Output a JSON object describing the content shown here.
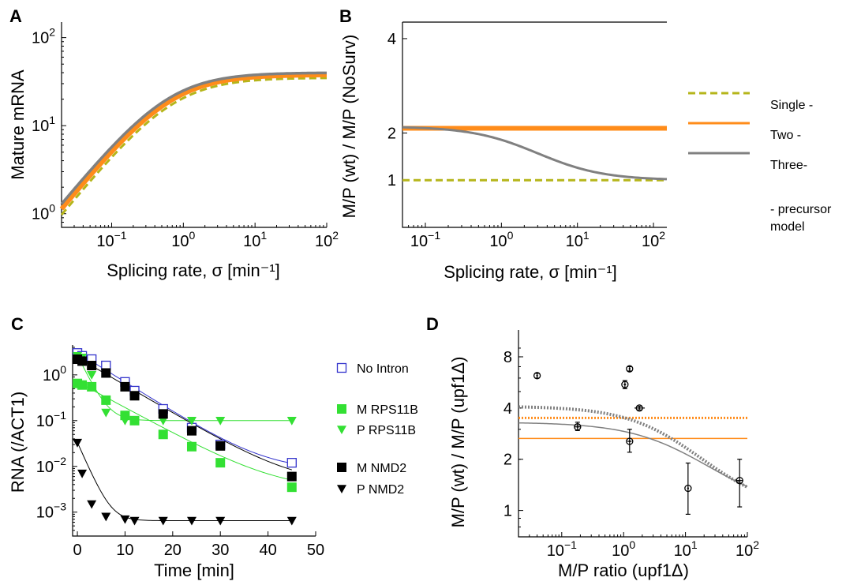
{
  "colors": {
    "single": "#b5b51a",
    "two": "#ff8c1a",
    "three": "#808080",
    "noIntron": "#3333cc",
    "rps": "#33e033",
    "nmd": "#000000"
  },
  "chart_data": [
    {
      "id": "A",
      "panel_label": "A",
      "type": "line",
      "xlabel": "Splicing rate, σ [min⁻¹]",
      "ylabel": "Mature mRNA",
      "xscale": "log",
      "yscale": "log",
      "xlim": [
        0.02,
        100
      ],
      "ylim": [
        0.7,
        150
      ],
      "xticks": [
        0.1,
        1,
        10,
        100
      ],
      "xtick_labels": [
        {
          "base": "10",
          "exp": "−1"
        },
        {
          "base": "10",
          "exp": "0"
        },
        {
          "base": "10",
          "exp": "1"
        },
        {
          "base": "10",
          "exp": "2"
        }
      ],
      "yticks": [
        1,
        10,
        100
      ],
      "ytick_labels": [
        {
          "base": "10",
          "exp": "0"
        },
        {
          "base": "10",
          "exp": "1"
        },
        {
          "base": "10",
          "exp": "2"
        }
      ],
      "series": [
        {
          "key": "single",
          "style": "dashed",
          "width": 3,
          "K": 35,
          "x0": 0.7,
          "n": 1
        },
        {
          "key": "two",
          "style": "solid",
          "width": 6,
          "K": 38,
          "x0": 0.65,
          "n": 1
        },
        {
          "key": "three",
          "style": "solid",
          "width": 3.5,
          "K": 40,
          "x0": 0.6,
          "n": 1
        }
      ]
    },
    {
      "id": "B",
      "panel_label": "B",
      "type": "line",
      "xlabel": "Splicing rate, σ [min⁻¹]",
      "ylabel": "M/P (wt) / M/P (NoSurv)",
      "xscale": "log",
      "yscale": "linear",
      "xlim": [
        0.05,
        150
      ],
      "ylim": [
        0,
        4.35
      ],
      "xticks": [
        0.1,
        1,
        10,
        100
      ],
      "xtick_labels": [
        {
          "base": "10",
          "exp": "−1"
        },
        {
          "base": "10",
          "exp": "0"
        },
        {
          "base": "10",
          "exp": "1"
        },
        {
          "base": "10",
          "exp": "2"
        }
      ],
      "yticks": [
        1,
        2,
        4
      ],
      "ytick_labels": [
        "1",
        "2",
        "4"
      ],
      "series": [
        {
          "key": "single",
          "style": "dashed",
          "width": 3,
          "const": 1.0
        },
        {
          "key": "two",
          "style": "solid",
          "width": 6,
          "const": 2.1
        },
        {
          "key": "three",
          "style": "solid",
          "width": 3,
          "top": 2.14,
          "bottom": 1.0,
          "mid": 3.0,
          "n": 1.0
        }
      ]
    },
    {
      "id": "C",
      "panel_label": "C",
      "type": "scatter",
      "xlabel": "Time [min]",
      "ylabel": "RNA (/ACT1)",
      "xscale": "linear",
      "yscale": "log",
      "xlim": [
        -1,
        50
      ],
      "ylim": [
        0.0003,
        4.5
      ],
      "xticks": [
        0,
        10,
        20,
        30,
        40,
        50
      ],
      "xtick_labels": [
        "0",
        "10",
        "20",
        "30",
        "40",
        "50"
      ],
      "yticks": [
        0.001,
        0.01,
        0.1,
        1
      ],
      "ytick_labels": [
        {
          "base": "10",
          "exp": "−3"
        },
        {
          "base": "10",
          "exp": "−2"
        },
        {
          "base": "10",
          "exp": "−1"
        },
        {
          "base": "10",
          "exp": "0"
        }
      ],
      "series": [
        {
          "key": "noIntron",
          "marker": "square-open",
          "x": [
            0,
            1,
            3,
            6,
            10,
            12,
            18,
            24,
            30,
            45
          ],
          "y": [
            3.0,
            2.6,
            2.2,
            1.6,
            0.7,
            0.45,
            0.18,
            0.07,
            0.03,
            0.012
          ],
          "fit": {
            "a": 3.1,
            "k": 0.15,
            "c": 0.008
          }
        },
        {
          "key": "mRps",
          "marker": "square",
          "x": [
            0,
            1,
            3,
            6,
            10,
            12,
            18,
            24,
            30,
            45
          ],
          "y": [
            0.65,
            0.6,
            0.55,
            0.28,
            0.13,
            0.1,
            0.05,
            0.027,
            0.012,
            0.0035
          ],
          "fit": {
            "a": 0.7,
            "k": 0.13,
            "c": 0.003
          }
        },
        {
          "key": "pRps",
          "marker": "triangle-down",
          "x": [
            0,
            1,
            3,
            6,
            10,
            12,
            18,
            24,
            30,
            45
          ],
          "y": [
            2.6,
            2.4,
            1.0,
            0.15,
            0.1,
            0.1,
            0.1,
            0.1,
            0.1,
            0.1
          ],
          "fit": {
            "a": 2.6,
            "k": 0.5,
            "c": 0.1
          }
        },
        {
          "key": "mNmd",
          "marker": "square",
          "x": [
            0,
            1,
            3,
            6,
            10,
            12,
            18,
            24,
            30,
            45
          ],
          "y": [
            2.2,
            2.0,
            1.6,
            1.1,
            0.55,
            0.35,
            0.14,
            0.06,
            0.028,
            0.006
          ],
          "fit": {
            "a": 2.4,
            "k": 0.14,
            "c": 0.004
          }
        },
        {
          "key": "pNmd",
          "marker": "triangle-down",
          "x": [
            0,
            1,
            3,
            6,
            10,
            12,
            18,
            24,
            30,
            45
          ],
          "y": [
            0.033,
            0.007,
            0.0015,
            0.0008,
            0.0007,
            0.00065,
            0.00065,
            0.00065,
            0.00065,
            0.00065
          ],
          "fit": {
            "a": 0.033,
            "k": 0.55,
            "c": 0.00065
          }
        }
      ],
      "legend": [
        {
          "key": "noIntron",
          "marker": "square-open",
          "label": "No Intron"
        },
        {
          "key": "mRps",
          "marker": "square",
          "label": "M RPS11B"
        },
        {
          "key": "pRps",
          "marker": "triangle-down",
          "label": "P  RPS11B"
        },
        {
          "key": "mNmd",
          "marker": "square",
          "label": "M NMD2"
        },
        {
          "key": "pNmd",
          "marker": "triangle-down",
          "label": "P  NMD2"
        }
      ]
    },
    {
      "id": "D",
      "panel_label": "D",
      "type": "scatter",
      "xlabel": "M/P ratio (upf1Δ)",
      "ylabel": "M/P (wt) / M/P (upf1Δ)",
      "xscale": "log",
      "yscale": "log",
      "xlim": [
        0.02,
        100
      ],
      "ylim": [
        0.7,
        11.5
      ],
      "xticks": [
        0.1,
        1,
        10,
        100
      ],
      "xtick_labels": [
        {
          "base": "10",
          "exp": "−1"
        },
        {
          "base": "10",
          "exp": "0"
        },
        {
          "base": "10",
          "exp": "1"
        },
        {
          "base": "10",
          "exp": "2"
        }
      ],
      "yticks": [
        1,
        2,
        4,
        8
      ],
      "ytick_labels": [
        "1",
        "2",
        "4",
        "8"
      ],
      "points": [
        {
          "x": 0.04,
          "y": 6.2,
          "yerr": [
            6.0,
            6.4
          ],
          "xerr": null
        },
        {
          "x": 0.18,
          "y": 3.1,
          "yerr": [
            2.95,
            3.3
          ],
          "xerr": [
            0.16,
            0.2
          ]
        },
        {
          "x": 1.05,
          "y": 5.5,
          "yerr": [
            5.2,
            5.8
          ],
          "xerr": [
            1.0,
            1.1
          ]
        },
        {
          "x": 1.25,
          "y": 6.8,
          "yerr": [
            6.6,
            7.0
          ],
          "xerr": null
        },
        {
          "x": 1.25,
          "y": 2.55,
          "yerr": [
            2.2,
            3.0
          ],
          "xerr": [
            1.15,
            1.35
          ]
        },
        {
          "x": 1.8,
          "y": 4.0,
          "yerr": [
            3.9,
            4.1
          ],
          "xerr": [
            1.5,
            2.2
          ]
        },
        {
          "x": 11,
          "y": 1.35,
          "yerr": [
            0.95,
            1.9
          ],
          "xerr": null
        },
        {
          "x": 75,
          "y": 1.5,
          "yerr": [
            1.05,
            2.0
          ],
          "xerr": [
            65,
            85
          ]
        }
      ],
      "lines": [
        {
          "key": "two",
          "style": "solid",
          "width": 1.5,
          "const": 2.65
        },
        {
          "key": "two",
          "style": "dotted",
          "width": 3,
          "const": 3.5
        },
        {
          "key": "three",
          "style": "solid",
          "width": 1.5,
          "top": 3.3,
          "bottom": 1.0,
          "mid": 10,
          "n": 0.7
        },
        {
          "key": "three",
          "style": "dotted",
          "width": 4,
          "top": 4.1,
          "bottom": 1.0,
          "mid": 7,
          "n": 0.75
        }
      ]
    }
  ],
  "legend_B": [
    {
      "key": "single",
      "style": "dashed",
      "label": "Single -"
    },
    {
      "key": "two",
      "style": "solid",
      "label": "Two -"
    },
    {
      "key": "three",
      "style": "solid",
      "label": " Three-"
    }
  ],
  "legend_B_footer": [
    "- precursor",
    "model"
  ]
}
